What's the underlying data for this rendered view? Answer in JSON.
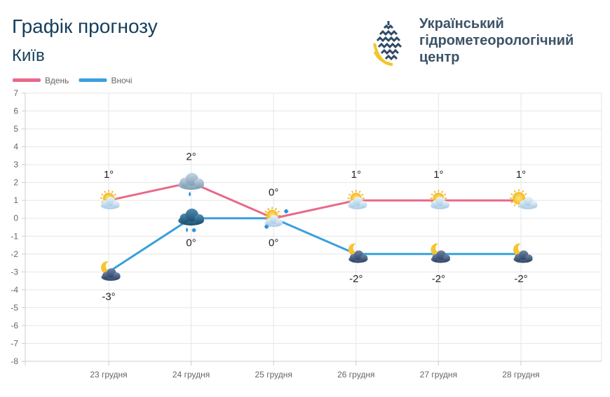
{
  "header": {
    "title": "Графік прогнозу",
    "city": "Київ",
    "org_lines": [
      "Український",
      "гідрометеорологічний",
      "центр"
    ]
  },
  "colors": {
    "day": "#e8698a",
    "night": "#3aa0dc",
    "title": "#153f5c"
  },
  "chart_data": {
    "type": "line",
    "title": "",
    "xlabel": "",
    "ylabel": "",
    "categories": [
      "23 грудня",
      "24 грудня",
      "25 грудня",
      "26 грудня",
      "27 грудня",
      "28 грудня"
    ],
    "series": [
      {
        "name": "Вдень",
        "color": "#e8698a",
        "values": [
          1,
          2,
          0,
          1,
          1,
          1
        ],
        "labels": [
          "1°",
          "2°",
          "0°",
          "1°",
          "1°",
          "1°"
        ],
        "icons": [
          "partly-cloudy-icon",
          "cloud-rain-icon",
          "partly-cloudy-snow-icon",
          "partly-cloudy-icon",
          "partly-cloudy-icon",
          "sun-cloud-icon"
        ]
      },
      {
        "name": "Вночі",
        "color": "#3aa0dc",
        "values": [
          -3,
          0,
          0,
          -2,
          -2,
          -2
        ],
        "labels": [
          "-3°",
          "0°",
          "0°",
          "-2°",
          "-2°",
          "-2°"
        ],
        "icons": [
          "moon-cloud-icon",
          "cloud-rain-snow-icon",
          "partly-cloudy-snow-icon",
          "moon-cloud-icon",
          "moon-cloud-icon",
          "moon-cloud-icon"
        ]
      }
    ],
    "ylim": [
      -8,
      7
    ],
    "yticks": [
      7,
      6,
      5,
      4,
      3,
      2,
      1,
      0,
      -1,
      -2,
      -3,
      -4,
      -5,
      -6,
      -7,
      -8
    ],
    "grid": true,
    "legend_position": "top-left"
  }
}
